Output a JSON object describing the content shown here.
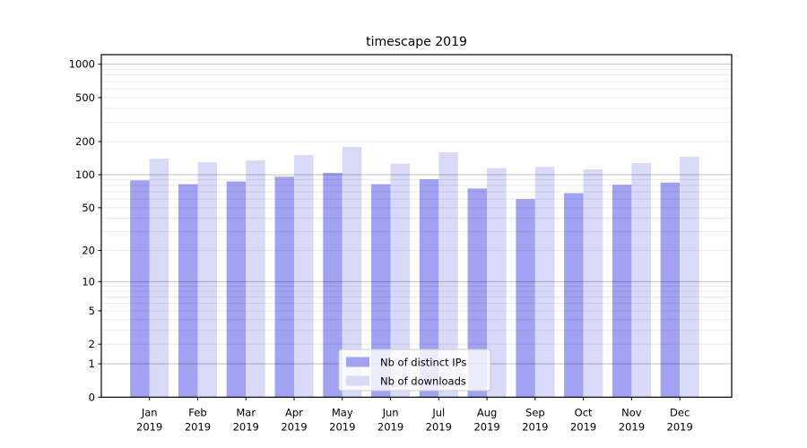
{
  "figure": {
    "background": "#ffffff"
  },
  "chart_data": {
    "type": "bar",
    "title": "timescape 2019",
    "categories": [
      "Jan",
      "Feb",
      "Mar",
      "Apr",
      "May",
      "Jun",
      "Jul",
      "Aug",
      "Sep",
      "Oct",
      "Nov",
      "Dec"
    ],
    "x_sublabel": "2019",
    "series": [
      {
        "name": "Nb of distinct IPs",
        "color": "#a2a2f2",
        "values": [
          89,
          82,
          87,
          96,
          104,
          82,
          91,
          75,
          60,
          68,
          81,
          85
        ]
      },
      {
        "name": "Nb of downloads",
        "color": "#d9d9f8",
        "values": [
          140,
          130,
          135,
          151,
          179,
          126,
          160,
          115,
          118,
          112,
          128,
          146
        ]
      }
    ],
    "yscale": "log1p",
    "ylim": [
      0,
      1220
    ],
    "ytick_values": [
      0,
      1,
      2,
      5,
      10,
      20,
      50,
      100,
      200,
      500,
      1000
    ],
    "grid": {
      "major_lines": [
        1,
        10,
        100,
        1000
      ],
      "minor_lines": [
        2,
        3,
        4,
        5,
        6,
        7,
        8,
        9,
        20,
        30,
        40,
        50,
        60,
        70,
        80,
        90,
        200,
        300,
        400,
        500,
        600,
        700,
        800,
        900
      ],
      "major_color": "rgba(0,0,0,0.24)",
      "minor_color": "rgba(0,0,0,0.08)"
    },
    "legend": {
      "position": "lower center",
      "background": "rgba(255,255,255,0.8)",
      "border_color": "#cccccc"
    },
    "axis_color": "#000000"
  }
}
